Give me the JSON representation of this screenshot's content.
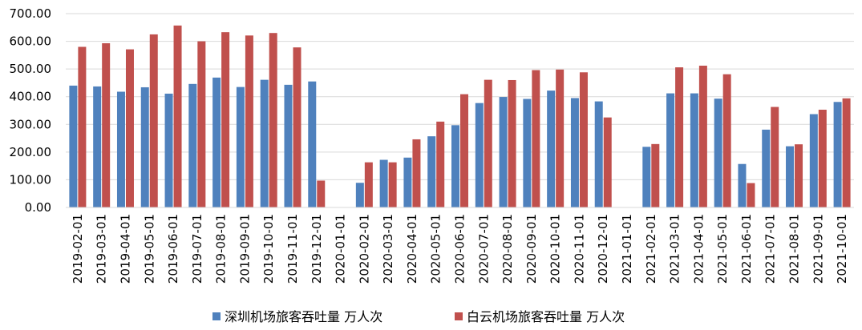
{
  "chart_data": {
    "type": "bar",
    "title": "",
    "xlabel": "",
    "ylabel": "",
    "ylim": [
      0,
      700
    ],
    "yticks": [
      "0.00",
      "100.00",
      "200.00",
      "300.00",
      "400.00",
      "500.00",
      "600.00",
      "700.00"
    ],
    "grid": "horizontal",
    "legend_position": "bottom",
    "categories": [
      "2019-02-01",
      "2019-03-01",
      "2019-04-01",
      "2019-05-01",
      "2019-06-01",
      "2019-07-01",
      "2019-08-01",
      "2019-09-01",
      "2019-10-01",
      "2019-11-01",
      "2019-12-01",
      "2020-01-01",
      "2020-02-01",
      "2020-03-01",
      "2020-04-01",
      "2020-05-01",
      "2020-06-01",
      "2020-07-01",
      "2020-08-01",
      "2020-09-01",
      "2020-10-01",
      "2020-11-01",
      "2020-12-01",
      "2021-01-01",
      "2021-02-01",
      "2021-03-01",
      "2021-04-01",
      "2021-05-01",
      "2021-06-01",
      "2021-07-01",
      "2021-08-01",
      "2021-09-01",
      "2021-10-01"
    ],
    "series": [
      {
        "name": "深圳机场旅客吞吐量 万人次",
        "color": "#4F81BD",
        "values": [
          440,
          437,
          418,
          434,
          411,
          446,
          469,
          435,
          461,
          443,
          455,
          null,
          89,
          172,
          180,
          257,
          297,
          377,
          399,
          392,
          422,
          395,
          383,
          null,
          219,
          412,
          412,
          393,
          157,
          281,
          221,
          337,
          381
        ]
      },
      {
        "name": "白云机场旅客吞吐量 万人次",
        "color": "#C0504D",
        "values": [
          580,
          593,
          571,
          625,
          657,
          600,
          633,
          621,
          630,
          578,
          97,
          null,
          163,
          163,
          246,
          310,
          409,
          461,
          460,
          496,
          498,
          488,
          325,
          null,
          229,
          506,
          512,
          481,
          88,
          363,
          228,
          353,
          394
        ]
      }
    ]
  }
}
